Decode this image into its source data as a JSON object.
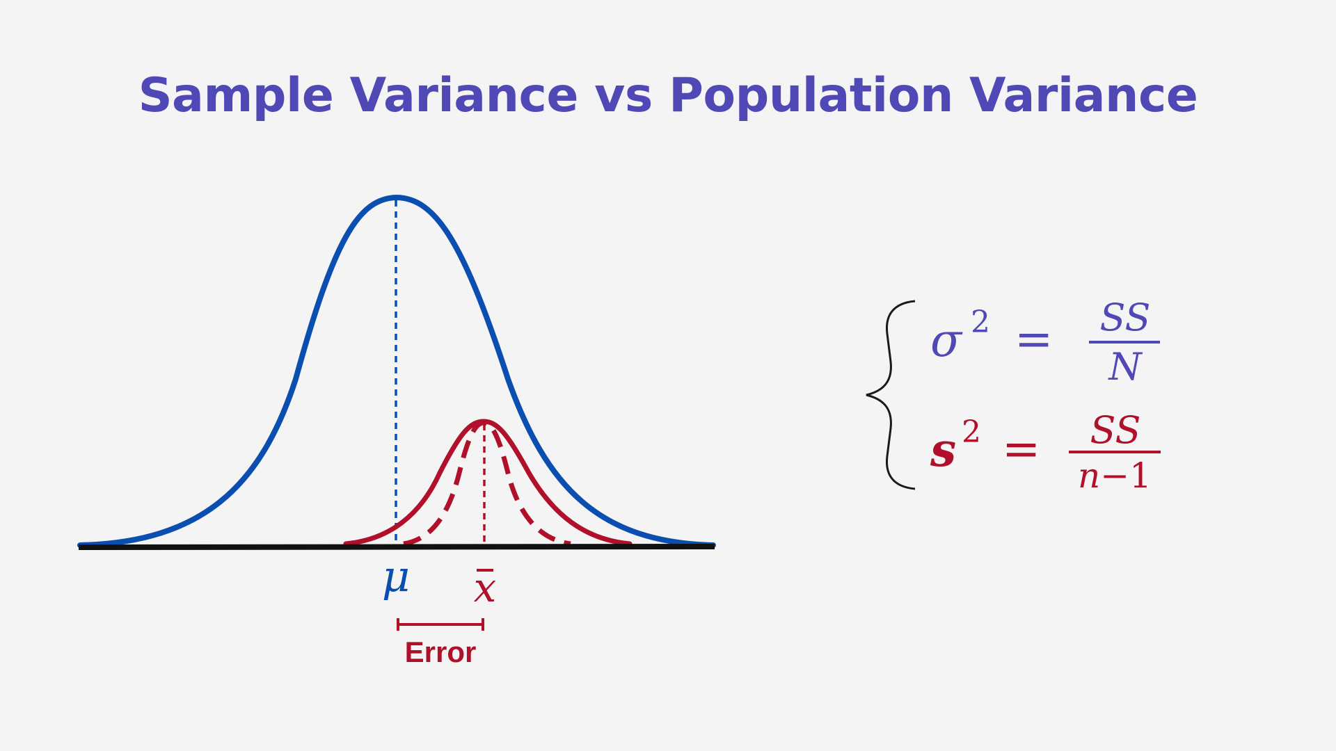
{
  "title": "Sample Variance vs Population Variance",
  "colors": {
    "background": "#f4f4f4",
    "title": "#4f48b5",
    "population": "#0a4fb0",
    "sample": "#b0102a",
    "axis": "#111111",
    "brace": "#1a1a1a"
  },
  "labels": {
    "mu": "μ",
    "xbar": "x",
    "error": "Error"
  },
  "formulas": {
    "population": {
      "lhs": "σ",
      "exp": "2",
      "eq": "=",
      "num": "SS",
      "den": "N"
    },
    "sample": {
      "lhs": "s",
      "exp": "2",
      "eq": "=",
      "num": "SS",
      "den_n": "n",
      "den_rest": "−1"
    }
  }
}
